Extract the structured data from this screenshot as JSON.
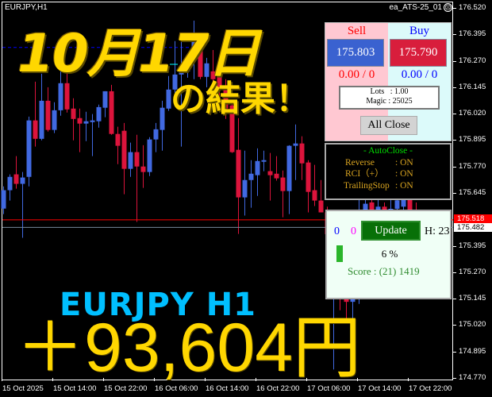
{
  "chart": {
    "symbol_label": "EURJPY,H1",
    "ea_name": "ea_ATS-25_01",
    "ea_status_icon": "sad-face-icon",
    "price_axis": [
      "176.520",
      "176.395",
      "176.270",
      "176.145",
      "176.020",
      "175.895",
      "175.770",
      "175.645",
      "175.395",
      "175.270",
      "175.145",
      "175.020",
      "174.895",
      "174.770"
    ],
    "bid_price": "175.518",
    "ask_line_price": "175.482",
    "time_axis": [
      "15 Oct 2025",
      "15 Oct 14:00",
      "15 Oct 22:00",
      "16 Oct 06:00",
      "16 Oct 14:00",
      "16 Oct 22:00",
      "17 Oct 06:00",
      "17 Oct 14:00",
      "17 Oct 22:00"
    ],
    "colors": {
      "bull": "#4169e1",
      "bear": "#dc143c",
      "bid_line": "#ff0000",
      "ask_line": "#778899",
      "dashed_line": "#0000ff"
    },
    "dashed_level": 176.333
  },
  "chart_data": {
    "type": "candlestick",
    "ylim": [
      174.77,
      176.52
    ],
    "candles": [
      [
        175.571,
        175.676,
        175.545,
        175.658
      ],
      [
        175.658,
        175.733,
        175.609,
        175.721
      ],
      [
        175.733,
        175.819,
        175.665,
        175.688
      ],
      [
        175.688,
        175.744,
        175.433,
        175.718
      ],
      [
        175.721,
        176.006,
        175.676,
        175.988
      ],
      [
        175.988,
        176.171,
        175.864,
        175.901
      ],
      [
        175.901,
        176.209,
        175.894,
        176.081
      ],
      [
        176.081,
        176.145,
        175.935,
        175.943
      ],
      [
        175.943,
        176.074,
        175.928,
        176.036
      ],
      [
        176.036,
        176.228,
        176.01,
        176.164
      ],
      [
        176.164,
        176.228,
        176.025,
        176.04
      ],
      [
        176.044,
        176.093,
        175.894,
        175.995
      ],
      [
        175.999,
        176.044,
        175.838,
        175.973
      ],
      [
        175.973,
        176.029,
        175.89,
        175.984
      ],
      [
        175.98,
        176.018,
        175.819,
        175.988
      ],
      [
        175.984,
        176.063,
        175.954,
        176.051
      ],
      [
        176.048,
        176.126,
        176.003,
        176.126
      ],
      [
        176.126,
        176.156,
        175.92,
        175.924
      ],
      [
        175.924,
        175.958,
        175.781,
        175.868
      ],
      [
        175.939,
        175.976,
        175.639,
        175.759
      ],
      [
        175.759,
        175.883,
        175.721,
        175.838
      ],
      [
        175.838,
        175.92,
        175.508,
        175.77
      ],
      [
        175.77,
        175.871,
        175.669,
        175.744
      ],
      [
        175.744,
        175.909,
        175.725,
        175.898
      ],
      [
        175.898,
        175.976,
        175.838,
        175.946
      ],
      [
        175.943,
        176.081,
        175.845,
        176.048
      ],
      [
        176.044,
        176.198,
        176.033,
        176.134
      ],
      [
        176.134,
        176.363,
        176.119,
        176.205
      ],
      [
        176.205,
        176.359,
        175.864,
        176.235
      ],
      [
        176.22,
        176.3,
        176.19,
        176.28
      ],
      [
        176.28,
        176.46,
        176.183,
        176.37
      ],
      [
        176.374,
        176.4,
        176.183,
        176.194
      ],
      [
        176.194,
        176.284,
        176.145,
        176.258
      ],
      [
        176.22,
        176.321,
        176.156,
        176.183
      ],
      [
        176.194,
        176.228,
        176.033,
        176.145
      ],
      [
        176.145,
        176.183,
        175.995,
        176.044
      ],
      [
        176.059,
        176.07,
        175.834,
        175.838
      ],
      [
        175.849,
        175.999,
        175.451,
        175.624
      ],
      [
        175.624,
        175.845,
        175.538,
        175.706
      ],
      [
        175.706,
        175.8,
        175.575,
        175.736
      ],
      [
        175.729,
        175.856,
        175.631,
        175.796
      ],
      [
        175.796,
        175.845,
        175.748,
        175.8
      ],
      [
        175.748,
        175.834,
        175.609,
        175.729
      ],
      [
        175.736,
        175.819,
        175.703,
        175.714
      ],
      [
        175.718,
        175.751,
        175.53,
        175.654
      ],
      [
        175.654,
        175.871,
        175.545,
        175.868
      ],
      [
        175.868,
        175.969,
        175.706,
        175.879
      ],
      [
        175.879,
        175.913,
        175.706,
        175.785
      ],
      [
        175.789,
        175.8,
        175.553,
        175.65
      ],
      [
        175.658,
        175.778,
        175.583,
        175.609
      ],
      [
        175.609,
        175.706,
        175.553,
        175.553
      ],
      [
        175.553,
        175.58,
        175.4,
        175.45
      ],
      [
        175.45,
        175.56,
        174.81,
        175.5
      ],
      [
        175.5,
        175.52,
        175.09,
        175.3
      ],
      [
        175.2,
        175.35,
        175.046,
        175.13
      ],
      [
        175.13,
        175.3,
        175.024,
        175.145
      ],
      [
        175.15,
        175.613,
        175.12,
        175.35
      ],
      [
        175.35,
        175.64,
        175.3,
        175.594
      ],
      [
        175.6,
        175.63,
        175.5,
        175.55
      ],
      [
        175.55,
        175.62,
        175.45,
        175.58
      ],
      [
        175.58,
        175.6,
        175.45,
        175.5
      ],
      [
        175.5,
        175.63,
        175.47,
        175.57
      ],
      [
        175.57,
        175.63,
        175.52,
        175.61
      ],
      [
        175.58,
        175.64,
        175.53,
        175.62
      ],
      [
        175.62,
        175.63,
        175.5,
        175.55
      ],
      [
        175.55,
        175.6,
        175.5,
        175.518
      ]
    ],
    "candle_format": [
      "open",
      "high",
      "low",
      "close"
    ]
  },
  "panel": {
    "sell_label": "Sell",
    "buy_label": "Buy",
    "sell_price": "175.803",
    "buy_price": "175.790",
    "sell_pl": "0.00 / 0",
    "buy_pl": "0.00 / 0",
    "lots": "Lots   : 1.00",
    "magic": "Magic : 25025",
    "all_close": "All Close",
    "colors": {
      "sell_button": "#3a62d0",
      "buy_button": "#d81e3c",
      "sell_text": "#ff0000",
      "buy_text": "#0000ff"
    }
  },
  "autoclose": {
    "title": "- AutoClose -",
    "rows": [
      {
        "key": "Reverse",
        "value": ": ON"
      },
      {
        "key": "RCI（+）",
        "value": ": ON"
      },
      {
        "key": "TrailingStop",
        "value": ": ON"
      }
    ]
  },
  "lower_panel": {
    "count_blue": "0",
    "count_magenta": "0",
    "update": "Update",
    "hours": "H: 23",
    "progress_text": "6 %",
    "progress_percent": 6,
    "score": "Score : (21) 1419"
  },
  "overlay": {
    "date": "10月17日",
    "result": "の結果！",
    "pair_tf": "EURJPY  H1",
    "profit": "＋93,604円"
  }
}
